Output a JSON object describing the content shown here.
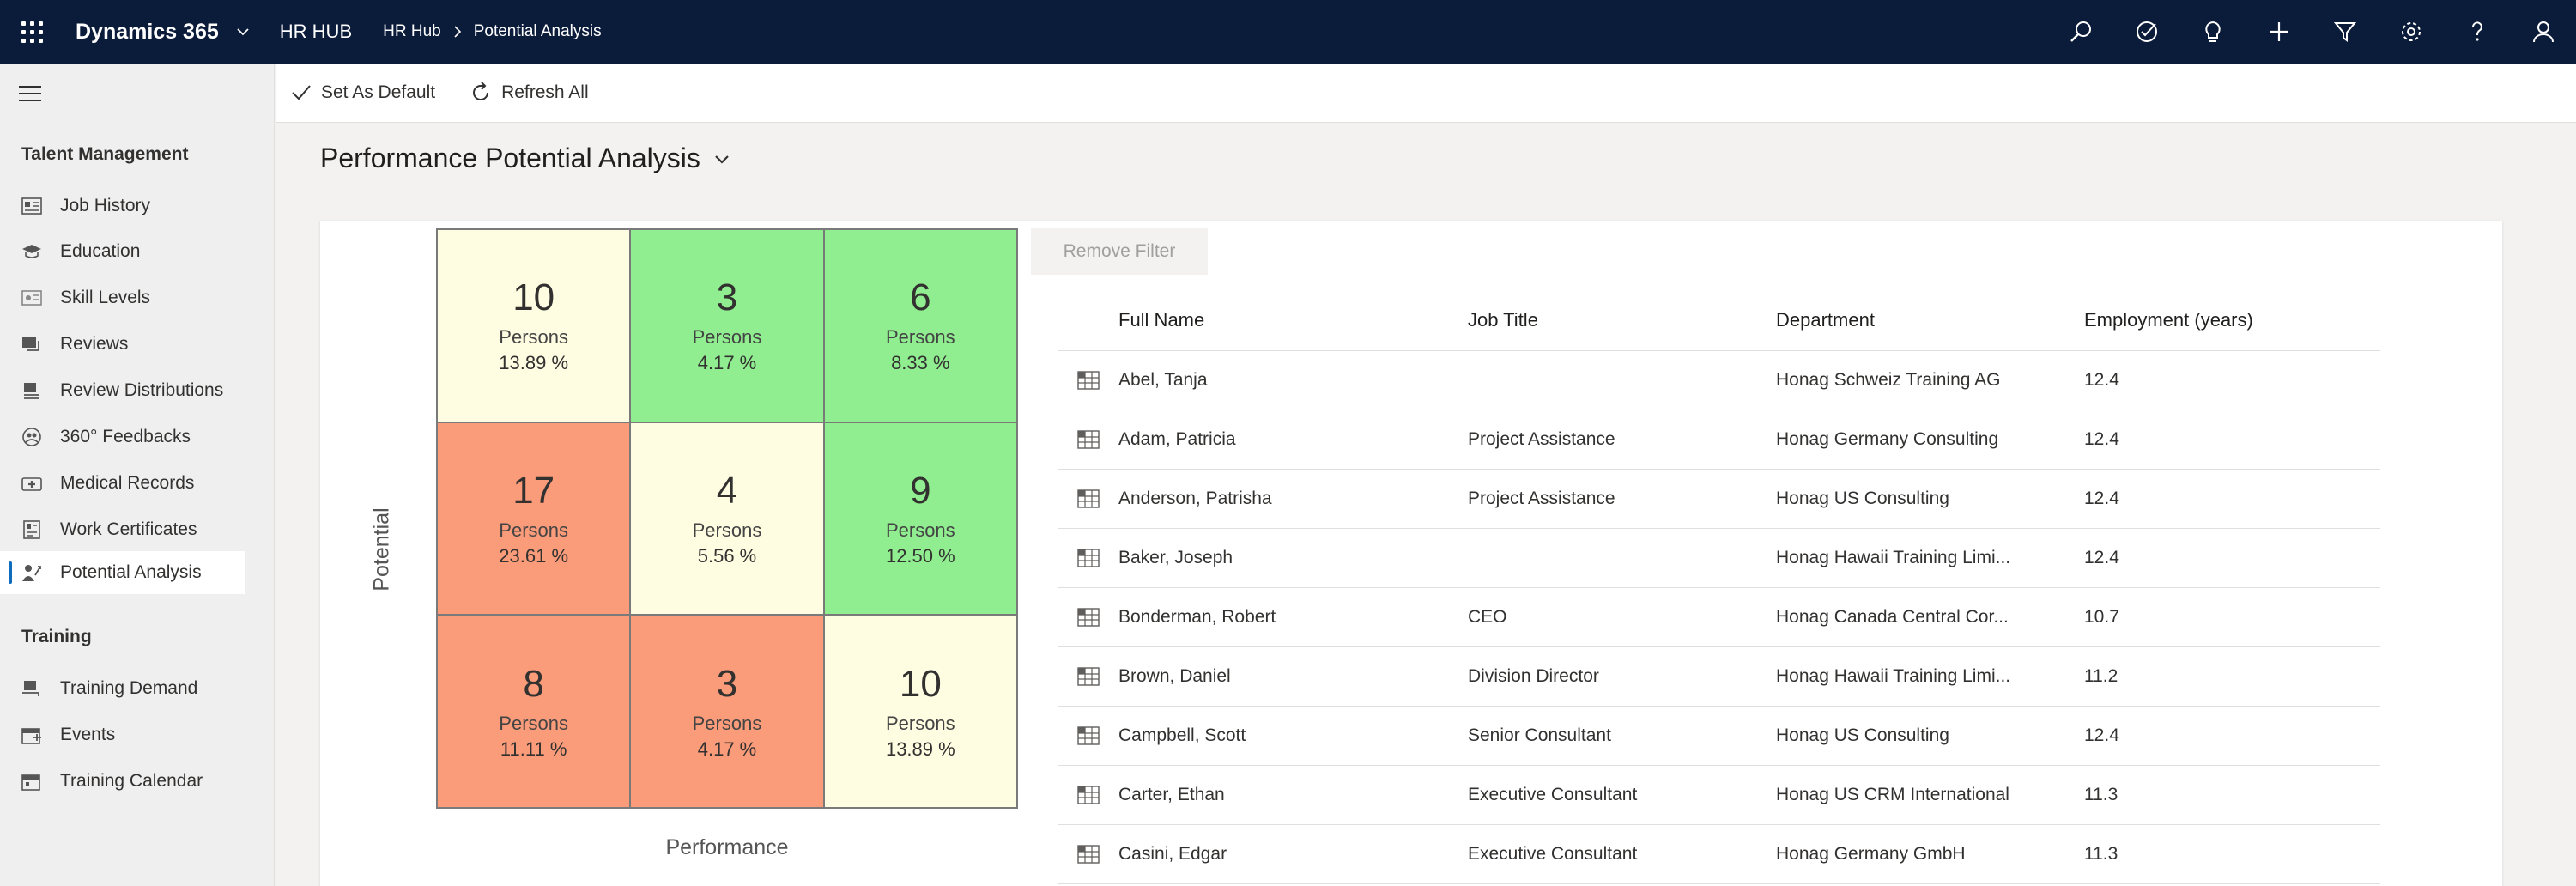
{
  "topbar": {
    "app_name": "Dynamics 365",
    "hub": "HR HUB",
    "breadcrumb": [
      "HR Hub",
      "Potential Analysis"
    ],
    "icons": [
      "search-icon",
      "task-icon",
      "lightbulb-icon",
      "plus-icon",
      "filter-icon",
      "settings-icon",
      "help-icon",
      "user-icon"
    ]
  },
  "sidebar": {
    "groups": [
      {
        "title": "Talent Management",
        "items": [
          {
            "label": "Job History",
            "icon": "job-history-icon"
          },
          {
            "label": "Education",
            "icon": "education-icon"
          },
          {
            "label": "Skill Levels",
            "icon": "skill-levels-icon"
          },
          {
            "label": "Reviews",
            "icon": "reviews-icon"
          },
          {
            "label": "Review Distributions",
            "icon": "review-distributions-icon"
          },
          {
            "label": "360° Feedbacks",
            "icon": "feedback-360-icon"
          },
          {
            "label": "Medical Records",
            "icon": "medical-records-icon"
          },
          {
            "label": "Work Certificates",
            "icon": "work-certificates-icon"
          },
          {
            "label": "Potential Analysis",
            "icon": "potential-analysis-icon",
            "active": true
          }
        ]
      },
      {
        "title": "Training",
        "items": [
          {
            "label": "Training Demand",
            "icon": "training-demand-icon"
          },
          {
            "label": "Events",
            "icon": "events-icon"
          },
          {
            "label": "Training Calendar",
            "icon": "training-calendar-icon"
          }
        ]
      }
    ]
  },
  "commands": {
    "set_default": "Set As Default",
    "refresh_all": "Refresh All"
  },
  "page": {
    "title": "Performance Potential Analysis"
  },
  "matrix": {
    "x_label": "Performance",
    "y_label": "Potential",
    "rows": [
      [
        {
          "count": "10",
          "label": "Persons",
          "percent": "13.89 %",
          "color": "#fffde1"
        },
        {
          "count": "3",
          "label": "Persons",
          "percent": "4.17 %",
          "color": "#90ee90"
        },
        {
          "count": "6",
          "label": "Persons",
          "percent": "8.33 %",
          "color": "#90ee90"
        }
      ],
      [
        {
          "count": "17",
          "label": "Persons",
          "percent": "23.61 %",
          "color": "#fa9b7a"
        },
        {
          "count": "4",
          "label": "Persons",
          "percent": "5.56 %",
          "color": "#fffde1"
        },
        {
          "count": "9",
          "label": "Persons",
          "percent": "12.50 %",
          "color": "#90ee90"
        }
      ],
      [
        {
          "count": "8",
          "label": "Persons",
          "percent": "11.11 %",
          "color": "#fa9b7a"
        },
        {
          "count": "3",
          "label": "Persons",
          "percent": "4.17 %",
          "color": "#fa9b7a"
        },
        {
          "count": "10",
          "label": "Persons",
          "percent": "13.89 %",
          "color": "#fffde1"
        }
      ]
    ]
  },
  "table": {
    "remove_filter": "Remove Filter",
    "columns": [
      "Full Name",
      "Job Title",
      "Department",
      "Employment (years)"
    ],
    "rows": [
      {
        "name": "Abel, Tanja",
        "title": "",
        "dept": "Honag Schweiz Training AG",
        "years": "12.4"
      },
      {
        "name": "Adam, Patricia",
        "title": "Project Assistance",
        "dept": "Honag Germany Consulting",
        "years": "12.4"
      },
      {
        "name": "Anderson, Patrisha",
        "title": "Project Assistance",
        "dept": "Honag US Consulting",
        "years": "12.4"
      },
      {
        "name": "Baker, Joseph",
        "title": "",
        "dept": "Honag Hawaii Training Limi...",
        "years": "12.4"
      },
      {
        "name": "Bonderman, Robert",
        "title": "CEO",
        "dept": "Honag Canada Central Cor...",
        "years": "10.7"
      },
      {
        "name": "Brown, Daniel",
        "title": "Division Director",
        "dept": "Honag Hawaii Training Limi...",
        "years": "11.2"
      },
      {
        "name": "Campbell, Scott",
        "title": "Senior Consultant",
        "dept": "Honag US Consulting",
        "years": "12.4"
      },
      {
        "name": "Carter, Ethan",
        "title": "Executive Consultant",
        "dept": "Honag US CRM International",
        "years": "11.3"
      },
      {
        "name": "Casini, Edgar",
        "title": "Executive Consultant",
        "dept": "Honag Germany GmbH",
        "years": "11.3"
      }
    ]
  }
}
